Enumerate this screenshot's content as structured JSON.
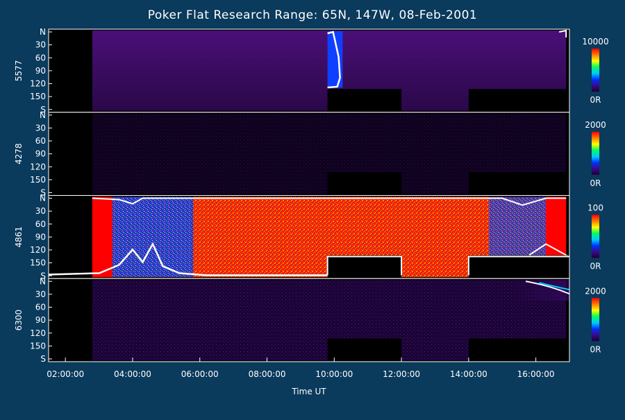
{
  "chart_data": {
    "type": "heatmap",
    "title": "Poker Flat Research Range: 65N, 147W, 08-Feb-2001",
    "xlabel": "Time UT",
    "x_ticks": [
      "02:00:00",
      "04:00:00",
      "06:00:00",
      "08:00:00",
      "10:00:00",
      "12:00:00",
      "14:00:00",
      "16:00:00"
    ],
    "x_range_hours": [
      1.5,
      17
    ],
    "y_ticks": [
      "N",
      "30",
      "60",
      "90",
      "120",
      "150",
      "S"
    ],
    "panels": [
      {
        "name": "5577",
        "colorbar_max": "10000",
        "colorbar_min": "0R"
      },
      {
        "name": "4278",
        "colorbar_max": "2000",
        "colorbar_min": "0R"
      },
      {
        "name": "4861",
        "colorbar_max": "100",
        "colorbar_min": "0R"
      },
      {
        "name": "6300",
        "colorbar_max": "2000",
        "colorbar_min": "0R"
      }
    ],
    "colors": {
      "background": "#0a3a5c",
      "plot": "#000000",
      "axis": "#ffffff",
      "colormap": [
        "#1a0030",
        "#3a0a8a",
        "#0030ff",
        "#00c8ff",
        "#00ff60",
        "#ffff00",
        "#ff8000",
        "#ff0000"
      ]
    }
  }
}
